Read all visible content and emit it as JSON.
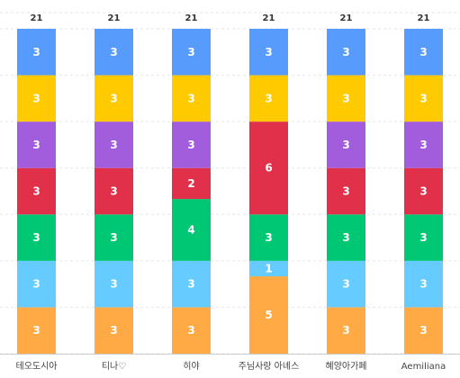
{
  "chart_data": {
    "type": "bar",
    "stacked": true,
    "categories": [
      "테오도시아",
      "티나♡",
      "히야",
      "주님사랑 아녜스",
      "혜양아가페",
      "Aemiliana"
    ],
    "totals": [
      "21",
      "21",
      "21",
      "21",
      "21",
      "21"
    ],
    "series": [
      {
        "color": "#ffaa44",
        "values": [
          3,
          3,
          3,
          5,
          3,
          3
        ]
      },
      {
        "color": "#66ccff",
        "values": [
          3,
          3,
          3,
          1,
          3,
          3
        ]
      },
      {
        "color": "#00c774",
        "values": [
          3,
          3,
          4,
          3,
          3,
          3
        ]
      },
      {
        "color": "#e0304a",
        "values": [
          3,
          3,
          2,
          6,
          3,
          3
        ]
      },
      {
        "color": "#a25ddc",
        "values": [
          3,
          3,
          3,
          0,
          3,
          3
        ]
      },
      {
        "color": "#ffcb00",
        "values": [
          3,
          3,
          3,
          3,
          3,
          3
        ]
      },
      {
        "color": "#579bfc",
        "values": [
          3,
          3,
          3,
          3,
          3,
          3
        ]
      }
    ],
    "ylim": [
      0,
      21
    ],
    "grid": "horizontal dashed",
    "legend": "none"
  }
}
